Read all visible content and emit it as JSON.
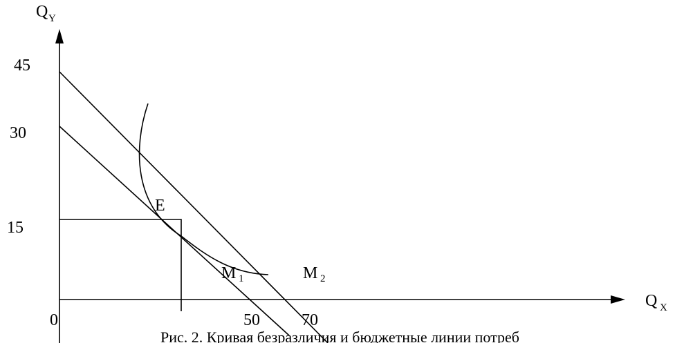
{
  "axes": {
    "y_label": "Q",
    "y_label_sub": "Y",
    "x_label": "Q",
    "x_label_sub": "X",
    "origin": "0"
  },
  "y_ticks": [
    "45",
    "30",
    "15"
  ],
  "x_ticks": [
    "50",
    "70"
  ],
  "points": {
    "equilibrium": "E"
  },
  "lines": {
    "m1_label": "M",
    "m1_sub": "1",
    "m2_label": "M",
    "m2_sub": "2"
  },
  "caption": "Рис. 2. Кривая безразличия и бюджетные линии потреб"
}
